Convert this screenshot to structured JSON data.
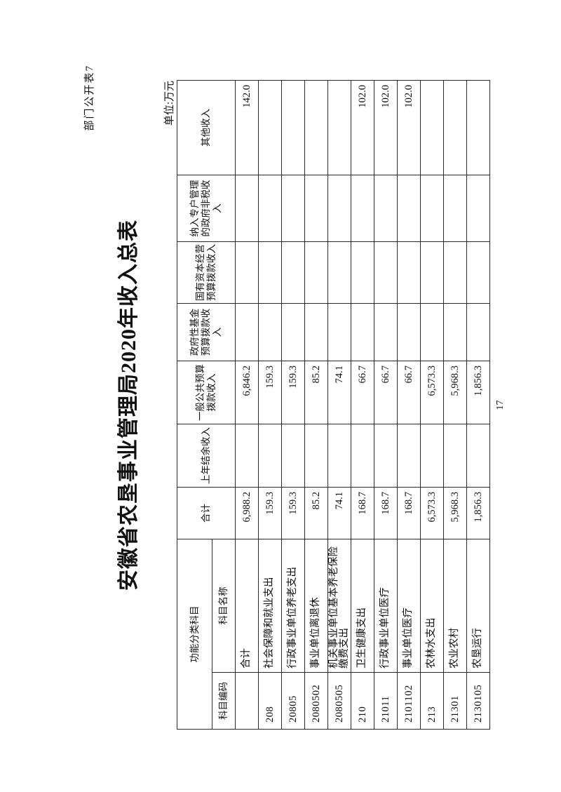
{
  "page": {
    "corner_label": "部门公开表7",
    "title": "安徽省农垦事业管理局2020年收入总表",
    "unit_label": "单位:万元",
    "page_number": "17"
  },
  "table": {
    "header": {
      "group_label": "功能分类科目",
      "code_label": "科目编码",
      "name_label": "科目名称",
      "columns": [
        "合计",
        "上年结余收入",
        "一般公共预算拨款收入",
        "政府性基金预算拨款收入",
        "国有资本经营预算拨款收入",
        "纳入专户管理的政府非税收入",
        "其他收入"
      ]
    },
    "rows": [
      {
        "code": "",
        "name": "合计",
        "values": [
          "6,988.2",
          "",
          "6,846.2",
          "",
          "",
          "",
          "142.0"
        ]
      },
      {
        "code": "208",
        "name": "社会保障和就业支出",
        "values": [
          "159.3",
          "",
          "159.3",
          "",
          "",
          "",
          ""
        ]
      },
      {
        "code": "20805",
        "name": "行政事业单位养老支出",
        "values": [
          "159.3",
          "",
          "159.3",
          "",
          "",
          "",
          ""
        ]
      },
      {
        "code": "2080502",
        "name": "事业单位离退休",
        "values": [
          "85.2",
          "",
          "85.2",
          "",
          "",
          "",
          ""
        ]
      },
      {
        "code": "2080505",
        "name": "机关事业单位基本养老保险缴费支出",
        "values": [
          "74.1",
          "",
          "74.1",
          "",
          "",
          "",
          ""
        ]
      },
      {
        "code": "210",
        "name": "卫生健康支出",
        "values": [
          "168.7",
          "",
          "66.7",
          "",
          "",
          "",
          "102.0"
        ]
      },
      {
        "code": "21011",
        "name": "行政事业单位医疗",
        "values": [
          "168.7",
          "",
          "66.7",
          "",
          "",
          "",
          "102.0"
        ]
      },
      {
        "code": "2101102",
        "name": "事业单位医疗",
        "values": [
          "168.7",
          "",
          "66.7",
          "",
          "",
          "",
          "102.0"
        ]
      },
      {
        "code": "213",
        "name": "农林水支出",
        "values": [
          "6,573.3",
          "",
          "6,573.3",
          "",
          "",
          "",
          ""
        ]
      },
      {
        "code": "21301",
        "name": "农业农村",
        "values": [
          "5,968.3",
          "",
          "5,968.3",
          "",
          "",
          "",
          ""
        ]
      },
      {
        "code": "2130105",
        "name": "农垦运行",
        "values": [
          "1,856.3",
          "",
          "1,856.3",
          "",
          "",
          "",
          ""
        ]
      }
    ]
  }
}
